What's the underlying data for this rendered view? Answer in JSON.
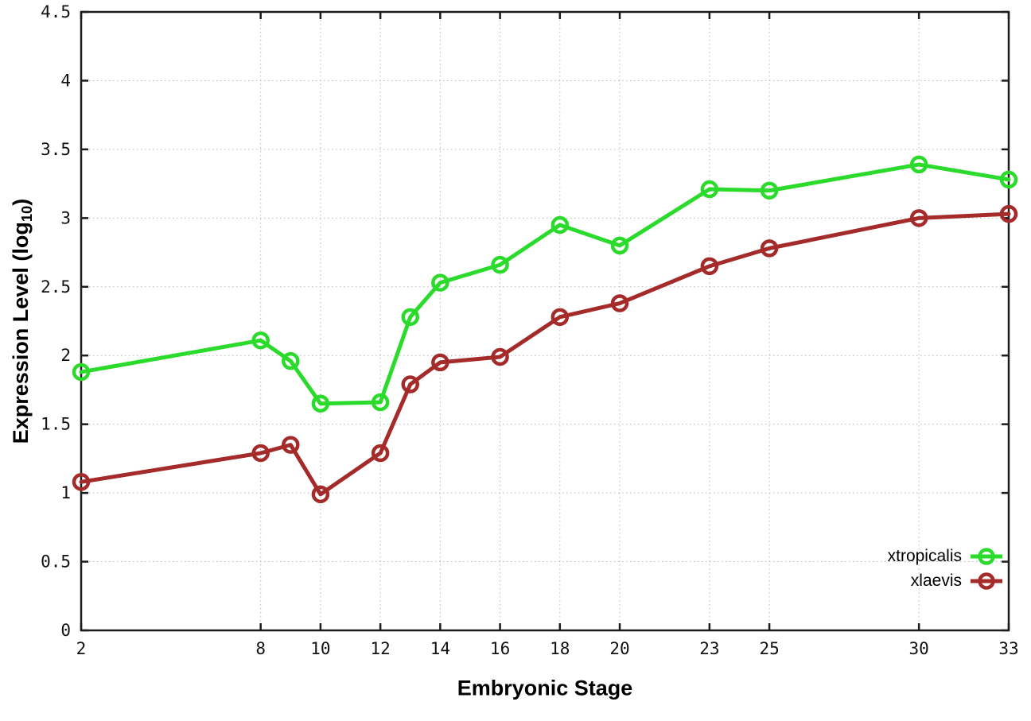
{
  "chart_data": {
    "type": "line",
    "title": "",
    "xlabel": "Embryonic Stage",
    "ylabel": "Expression Level (log10)",
    "ylabel_prefix": "Expression Level (log",
    "ylabel_sub": "10",
    "ylabel_suffix": ")",
    "x": [
      2,
      8,
      9,
      10,
      12,
      13,
      14,
      16,
      18,
      20,
      23,
      25,
      30,
      33
    ],
    "series": [
      {
        "name": "xtropicalis",
        "color": "#2bdb2b",
        "marker": "open-circle",
        "values": [
          1.88,
          2.11,
          1.96,
          1.65,
          1.66,
          2.28,
          2.53,
          2.66,
          2.95,
          2.8,
          3.21,
          3.2,
          3.39,
          3.28
        ]
      },
      {
        "name": "xlaevis",
        "color": "#a52a2a",
        "marker": "open-circle",
        "values": [
          1.08,
          1.29,
          1.35,
          0.99,
          1.29,
          1.79,
          1.95,
          1.99,
          2.28,
          2.38,
          2.65,
          2.78,
          3.0,
          3.03
        ]
      }
    ],
    "xlim": [
      2,
      33
    ],
    "ylim": [
      0,
      4.5
    ],
    "x_ticks": [
      2,
      8,
      10,
      12,
      14,
      16,
      18,
      20,
      23,
      25,
      30,
      33
    ],
    "x_tick_labels": [
      "2",
      "8",
      "10",
      "12",
      "14",
      "16",
      "18",
      "20",
      "23",
      "25",
      "30",
      "33"
    ],
    "y_ticks": [
      0,
      0.5,
      1,
      1.5,
      2,
      2.5,
      3,
      3.5,
      4,
      4.5
    ],
    "y_tick_labels": [
      "0",
      "0.5",
      "1",
      "1.5",
      "2",
      "2.5",
      "3",
      "3.5",
      "4",
      "4.5"
    ],
    "grid": true,
    "grid_style": "dotted",
    "legend_position": "inside-bottom-right",
    "background_color": "#ffffff",
    "axis_color": "#1c1c1c",
    "grid_color": "#b9b9b9",
    "tick_label_color": "#111111"
  }
}
